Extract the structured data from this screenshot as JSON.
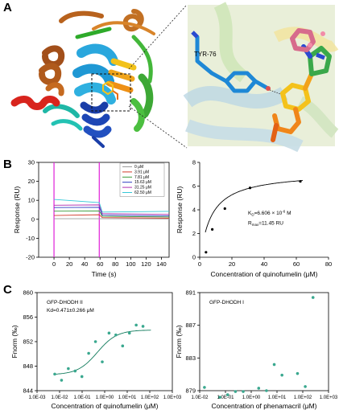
{
  "panels": {
    "a": "A",
    "b": "B",
    "c": "C"
  },
  "structure": {
    "residue_label": "TYR-76"
  },
  "colors": {
    "background_render": "#e7f0cf",
    "teal": "#3aa88f",
    "curve": "#0f7a5b"
  },
  "chart_data": [
    {
      "type": "line",
      "ylabel": "Response (RU)",
      "xlabel": "Time (s)",
      "xlim": [
        -20,
        150
      ],
      "ylim": [
        -20,
        30
      ],
      "xticks": [
        0,
        20,
        40,
        60,
        80,
        100,
        120,
        140
      ],
      "yticks": [
        -20,
        -10,
        0,
        10,
        20,
        30
      ],
      "legend_position": "top-right",
      "series": [
        {
          "name": "0 μM",
          "color": "#9a9a9a",
          "values": [
            [
              0,
              0.3
            ],
            [
              59,
              0.3
            ],
            [
              150,
              0.2
            ]
          ]
        },
        {
          "name": "3.91 μM",
          "color": "#d23a2c",
          "values": [
            [
              0,
              2.0
            ],
            [
              59,
              2.4
            ],
            [
              63,
              0.9
            ],
            [
              150,
              0.6
            ]
          ]
        },
        {
          "name": "7.81 μM",
          "color": "#3a9a3a",
          "values": [
            [
              0,
              4.3
            ],
            [
              59,
              4.4
            ],
            [
              63,
              1.6
            ],
            [
              150,
              1.2
            ]
          ]
        },
        {
          "name": "15.63 μM",
          "color": "#2b3bc0",
          "values": [
            [
              0,
              6.2
            ],
            [
              59,
              6.3
            ],
            [
              63,
              2.2
            ],
            [
              150,
              1.8
            ]
          ]
        },
        {
          "name": "31.25 μM",
          "color": "#b02fb0",
          "values": [
            [
              0,
              7.4
            ],
            [
              59,
              7.6
            ],
            [
              63,
              3.0
            ],
            [
              150,
              2.6
            ]
          ]
        },
        {
          "name": "62.50 μM",
          "color": "#35c8d8",
          "values": [
            [
              0,
              10.5
            ],
            [
              59,
              8.8
            ],
            [
              63,
              3.8
            ],
            [
              150,
              4.2
            ]
          ]
        }
      ]
    },
    {
      "type": "scatter",
      "ylabel": "Response (RU)",
      "xlabel": "Concentration of quinofumelin (μM)",
      "xlim": [
        0,
        80
      ],
      "ylim": [
        0,
        8
      ],
      "xticks": [
        0,
        20,
        40,
        60,
        80
      ],
      "yticks": [
        0,
        2,
        4,
        6,
        8
      ],
      "points": [
        [
          3.91,
          0.42
        ],
        [
          7.81,
          2.35
        ],
        [
          15.63,
          4.1
        ],
        [
          31.25,
          5.85
        ],
        [
          62.5,
          6.4
        ]
      ],
      "annotation_kd": "K",
      "annotation_kd_sub": "D",
      "annotation_kd_value": "=6.606 × 10",
      "annotation_kd_exp": "-6",
      "annotation_kd_unit": " M",
      "annotation_r": "R",
      "annotation_r_sub": "max",
      "annotation_r_value": "=11.45 RU"
    },
    {
      "type": "scatter",
      "title": "GFP-DHODH II",
      "annotation": "Kd=0.471±0.266 μM",
      "ylabel": "Fnorm (‰)",
      "xlabel": "Concentration of quinofumelin (μM)",
      "xscale": "log",
      "xticks": [
        "1.0E-03",
        "1.0E-02",
        "1.0E-01",
        "1.0E+00",
        "1.0E+01",
        "1.0E+02",
        "1.0E+03"
      ],
      "yticks": [
        844,
        848,
        852,
        856,
        860
      ],
      "ylim": [
        844,
        860
      ],
      "points": [
        [
          0.0061,
          846.7
        ],
        [
          0.0122,
          845.7
        ],
        [
          0.0244,
          847.6
        ],
        [
          0.0488,
          847.2
        ],
        [
          0.0977,
          846.3
        ],
        [
          0.195,
          850.1
        ],
        [
          0.391,
          852.0
        ],
        [
          0.781,
          848.7
        ],
        [
          1.56,
          853.4
        ],
        [
          3.13,
          853.1
        ],
        [
          6.25,
          851.3
        ],
        [
          12.5,
          853.4
        ],
        [
          25,
          854.7
        ],
        [
          50,
          854.5
        ]
      ]
    },
    {
      "type": "scatter",
      "title": "GFP-DHODH I",
      "ylabel": "Fnorm (‰)",
      "xlabel": "Concentration of phenamacril (μM)",
      "xscale": "log",
      "xticks": [
        "1.0E-02",
        "1.0E-01",
        "1.0E+00",
        "1.0E+01",
        "1.0E+02",
        "1.0E+03"
      ],
      "yticks": [
        879,
        883,
        887,
        891
      ],
      "ylim": [
        879,
        891
      ],
      "points": [
        [
          0.0153,
          879.4
        ],
        [
          0.061,
          878.2
        ],
        [
          0.122,
          878.5
        ],
        [
          0.244,
          878.9
        ],
        [
          0.488,
          878.9
        ],
        [
          1.95,
          879.3
        ],
        [
          3.9,
          879.0
        ],
        [
          7.8,
          882.2
        ],
        [
          15.6,
          880.9
        ],
        [
          62.5,
          881.1
        ],
        [
          125,
          879.5
        ],
        [
          250,
          890.4
        ]
      ]
    }
  ]
}
